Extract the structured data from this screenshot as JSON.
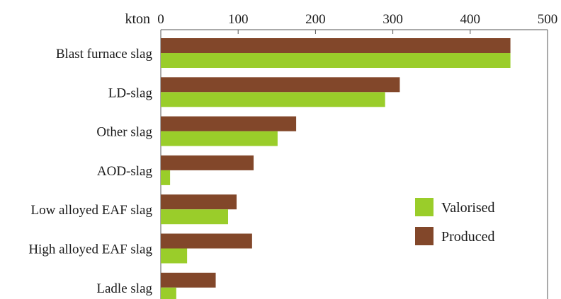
{
  "chart_data": {
    "type": "bar",
    "orientation": "horizontal",
    "unit_label": "kton",
    "xlim": [
      0,
      500
    ],
    "ticks": [
      "0",
      "100",
      "200",
      "300",
      "400",
      "500"
    ],
    "categories": [
      "Blast furnace slag",
      "LD-slag",
      "Other slag",
      "AOD-slag",
      "Low alloyed EAF slag",
      "High alloyed EAF slag",
      "Ladle slag"
    ],
    "series": [
      {
        "name": "Produced",
        "color": "#82472a",
        "values": [
          452,
          309,
          175,
          120,
          98,
          118,
          71
        ]
      },
      {
        "name": "Valorised",
        "color": "#9acd2a",
        "values": [
          452,
          290,
          151,
          12,
          87,
          34,
          20
        ]
      }
    ],
    "legend": {
      "position": "right",
      "order": [
        "Valorised",
        "Produced"
      ]
    },
    "grid": false
  }
}
